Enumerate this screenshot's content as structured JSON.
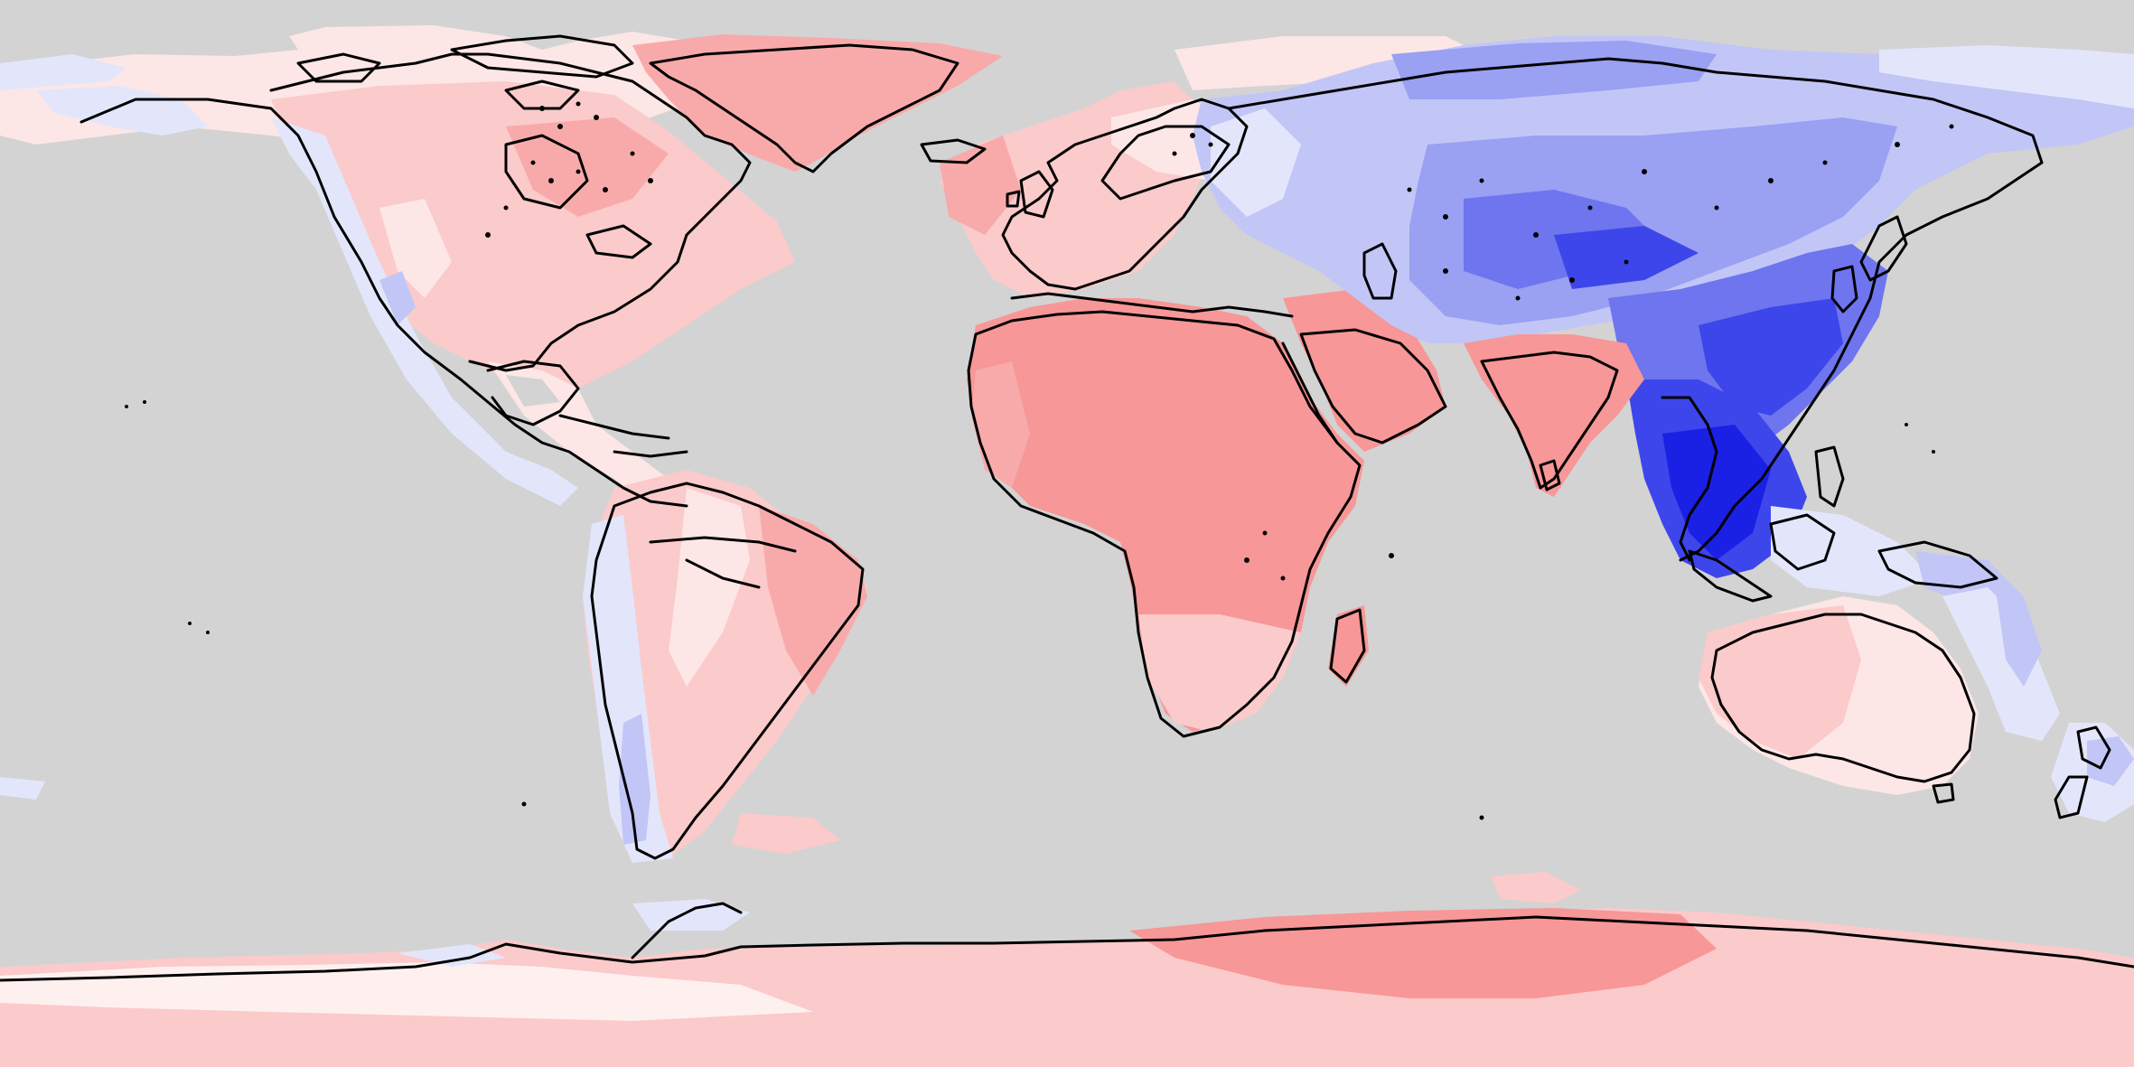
{
  "map": {
    "projection": "equirectangular",
    "background_color": "#d3d3d3",
    "coastline_color": "#000000",
    "color_scale": {
      "strong_warm": "#f79797",
      "warm": "#f8aaaa",
      "mild_warm": "#fbcaca",
      "weak_warm": "#fde6e6",
      "neutral": "#fff0f0",
      "weak_cool": "#e3e6fb",
      "mild_cool": "#c2c6f6",
      "cool": "#9aa0f2",
      "strong_cool": "#6e75ee",
      "very_strong_cool": "#3d46ea",
      "extreme_cool": "#1a20e4"
    },
    "regions": [
      {
        "name": "greenland",
        "anomaly": "warm"
      },
      {
        "name": "north-america",
        "anomaly": "mild_warm"
      },
      {
        "name": "alaska-west-coast",
        "anomaly": "weak_cool"
      },
      {
        "name": "south-america",
        "anomaly": "mild_warm"
      },
      {
        "name": "europe",
        "anomaly": "mild_warm"
      },
      {
        "name": "africa",
        "anomaly": "strong_warm"
      },
      {
        "name": "arabia",
        "anomaly": "strong_warm"
      },
      {
        "name": "india",
        "anomaly": "strong_warm"
      },
      {
        "name": "siberia",
        "anomaly": "cool"
      },
      {
        "name": "central-asia",
        "anomaly": "strong_cool"
      },
      {
        "name": "china",
        "anomaly": "very_strong_cool"
      },
      {
        "name": "southeast-asia",
        "anomaly": "extreme_cool"
      },
      {
        "name": "australia",
        "anomaly": "weak_warm"
      },
      {
        "name": "new-zealand",
        "anomaly": "weak_cool"
      },
      {
        "name": "antarctica",
        "anomaly": "mild_warm"
      }
    ]
  }
}
